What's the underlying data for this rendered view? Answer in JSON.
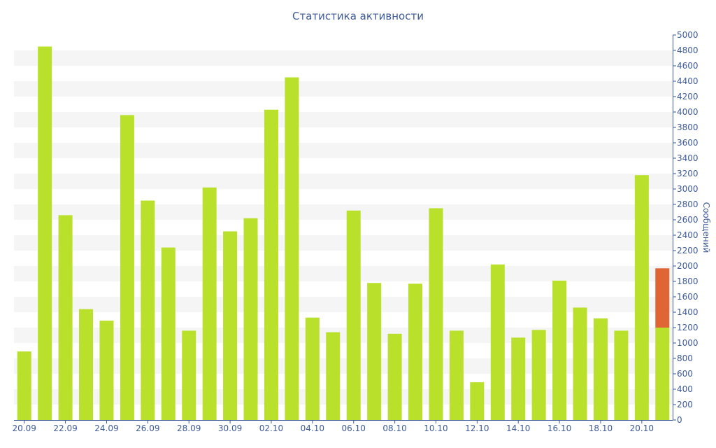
{
  "chart_data": {
    "type": "bar",
    "stacked": true,
    "title": "Статистика активности",
    "xlabel": "",
    "ylabel": "Сообщений",
    "ylim": [
      0,
      5000
    ],
    "y_ticks": [
      0,
      200,
      400,
      600,
      800,
      1000,
      1200,
      1400,
      1600,
      1800,
      2000,
      2200,
      2400,
      2600,
      2800,
      3000,
      3200,
      3400,
      3600,
      3800,
      4000,
      4200,
      4400,
      4600,
      4800,
      5000
    ],
    "y_axis_position": "right",
    "grid": "alternating horizontal bands",
    "legend": "none",
    "categories": [
      "20.09",
      "21.09",
      "22.09",
      "23.09",
      "24.09",
      "25.09",
      "26.09",
      "27.09",
      "28.09",
      "29.09",
      "30.09",
      "01.10",
      "02.10",
      "03.10",
      "04.10",
      "05.10",
      "06.10",
      "07.10",
      "08.10",
      "09.10",
      "10.10",
      "11.10",
      "12.10",
      "13.10",
      "14.10",
      "15.10",
      "16.10",
      "17.10",
      "18.10",
      "19.10",
      "20.10",
      "21.10"
    ],
    "x_tick_labels": [
      "20.09",
      "22.09",
      "24.09",
      "26.09",
      "28.09",
      "30.09",
      "02.10",
      "04.10",
      "06.10",
      "08.10",
      "10.10",
      "12.10",
      "14.10",
      "16.10",
      "18.10",
      "20.10"
    ],
    "series": [
      {
        "color": "#b9e02b",
        "values": [
          890,
          4850,
          2660,
          1440,
          1290,
          3960,
          2850,
          2240,
          1160,
          3020,
          2450,
          2620,
          4030,
          4450,
          1330,
          1140,
          2720,
          1780,
          1120,
          1770,
          2750,
          1160,
          490,
          2020,
          1070,
          1170,
          1810,
          1460,
          1320,
          1160,
          3180,
          1200
        ]
      },
      {
        "color": "#e06535",
        "values": [
          0,
          0,
          0,
          0,
          0,
          0,
          0,
          0,
          0,
          0,
          0,
          0,
          0,
          0,
          0,
          0,
          0,
          0,
          0,
          0,
          0,
          0,
          0,
          0,
          0,
          0,
          0,
          0,
          0,
          0,
          0,
          770
        ]
      }
    ],
    "colors": {
      "text": "#3d5a99",
      "band": "#f5f5f5",
      "axis": "#3d5a99"
    }
  }
}
